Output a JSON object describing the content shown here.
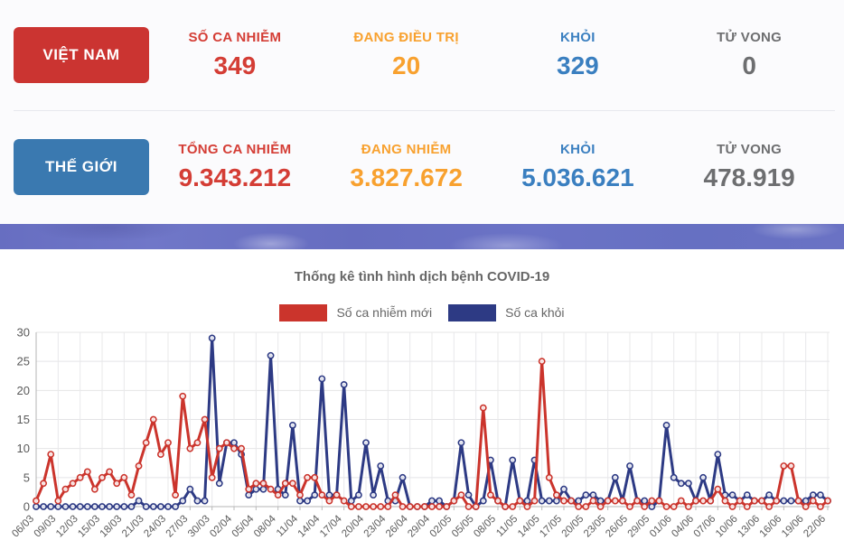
{
  "vietnam": {
    "button": "VIỆT NAM",
    "stats": [
      {
        "label": "SỐ CA NHIỄM",
        "value": "349",
        "color": "#d43d35"
      },
      {
        "label": "ĐANG ĐIỀU TRỊ",
        "value": "20",
        "color": "#f8a12f"
      },
      {
        "label": "KHỎI",
        "value": "329",
        "color": "#3a7fc0"
      },
      {
        "label": "TỬ VONG",
        "value": "0",
        "color": "#6d6e70"
      }
    ]
  },
  "world": {
    "button": "THẾ GIỚI",
    "stats": [
      {
        "label": "TỔNG CA NHIỄM",
        "value": "9.343.212",
        "color": "#d43d35"
      },
      {
        "label": "ĐANG NHIỄM",
        "value": "3.827.672",
        "color": "#f8a12f"
      },
      {
        "label": "KHỎI",
        "value": "5.036.621",
        "color": "#3a7fc0"
      },
      {
        "label": "TỬ VONG",
        "value": "478.919",
        "color": "#6d6e70"
      }
    ]
  },
  "chart": {
    "title": "Thống kê tình hình dịch bệnh COVID-19",
    "legend": [
      {
        "label": "Số ca nhiễm mới",
        "color": "#cb342c"
      },
      {
        "label": "Số ca khỏi",
        "color": "#2d3a84"
      }
    ]
  },
  "chart_data": {
    "type": "line",
    "title": "Thống kê tình hình dịch bệnh COVID-19",
    "xlabel": "",
    "ylabel": "",
    "ylim": [
      0,
      30
    ],
    "yticks": [
      0,
      5,
      10,
      15,
      20,
      25,
      30
    ],
    "xtick_every": 3,
    "grid": true,
    "legend_position": "top",
    "x": [
      "06/03",
      "07/03",
      "08/03",
      "09/03",
      "10/03",
      "11/03",
      "12/03",
      "13/03",
      "14/03",
      "15/03",
      "16/03",
      "17/03",
      "18/03",
      "19/03",
      "20/03",
      "21/03",
      "22/03",
      "23/03",
      "24/03",
      "25/03",
      "26/03",
      "27/03",
      "28/03",
      "29/03",
      "30/03",
      "31/03",
      "01/04",
      "02/04",
      "03/04",
      "04/04",
      "05/04",
      "06/04",
      "07/04",
      "08/04",
      "09/04",
      "10/04",
      "11/04",
      "12/04",
      "13/04",
      "14/04",
      "15/04",
      "16/04",
      "17/04",
      "18/04",
      "19/04",
      "20/04",
      "21/04",
      "22/04",
      "23/04",
      "24/04",
      "25/04",
      "26/04",
      "27/04",
      "28/04",
      "29/04",
      "30/04",
      "01/05",
      "02/05",
      "03/05",
      "04/05",
      "05/05",
      "06/05",
      "07/05",
      "08/05",
      "09/05",
      "10/05",
      "11/05",
      "12/05",
      "13/05",
      "14/05",
      "15/05",
      "16/05",
      "17/05",
      "18/05",
      "19/05",
      "20/05",
      "21/05",
      "22/05",
      "23/05",
      "24/05",
      "25/05",
      "26/05",
      "27/05",
      "28/05",
      "29/05",
      "30/05",
      "31/05",
      "01/06",
      "02/06",
      "03/06",
      "04/06",
      "05/06",
      "06/06",
      "07/06",
      "08/06",
      "09/06",
      "10/06",
      "11/06",
      "12/06",
      "13/06",
      "14/06",
      "15/06",
      "16/06",
      "17/06",
      "18/06",
      "19/06",
      "20/06",
      "21/06",
      "22/06"
    ],
    "series": [
      {
        "name": "Số ca nhiễm mới",
        "color": "#cb342c",
        "values": [
          1,
          4,
          9,
          1,
          3,
          4,
          5,
          6,
          3,
          5,
          6,
          4,
          5,
          2,
          7,
          11,
          15,
          9,
          11,
          2,
          19,
          10,
          11,
          15,
          5,
          10,
          11,
          10,
          10,
          3,
          4,
          4,
          3,
          2,
          4,
          4,
          2,
          5,
          5,
          2,
          1,
          2,
          1,
          0,
          0,
          0,
          0,
          0,
          0,
          2,
          0,
          0,
          0,
          0,
          0,
          0,
          0,
          1,
          2,
          0,
          0,
          17,
          2,
          1,
          0,
          0,
          1,
          0,
          1,
          25,
          5,
          2,
          1,
          1,
          0,
          0,
          1,
          0,
          1,
          1,
          1,
          0,
          1,
          0,
          1,
          1,
          0,
          0,
          1,
          0,
          1,
          1,
          1,
          3,
          1,
          0,
          1,
          0,
          1,
          1,
          0,
          1,
          7,
          7,
          1,
          0,
          1,
          0,
          1
        ]
      },
      {
        "name": "Số ca khỏi",
        "color": "#2d3a84",
        "values": [
          0,
          0,
          0,
          0,
          0,
          0,
          0,
          0,
          0,
          0,
          0,
          0,
          0,
          0,
          1,
          0,
          0,
          0,
          0,
          0,
          1,
          3,
          1,
          1,
          29,
          4,
          11,
          11,
          9,
          2,
          3,
          3,
          26,
          3,
          2,
          14,
          1,
          1,
          2,
          22,
          2,
          2,
          21,
          1,
          2,
          11,
          2,
          7,
          1,
          1,
          5,
          0,
          0,
          0,
          1,
          1,
          0,
          1,
          11,
          2,
          0,
          1,
          8,
          1,
          0,
          8,
          1,
          1,
          8,
          1,
          1,
          1,
          3,
          1,
          1,
          2,
          2,
          1,
          1,
          5,
          1,
          7,
          1,
          1,
          0,
          1,
          14,
          5,
          4,
          4,
          1,
          5,
          1,
          9,
          2,
          2,
          1,
          2,
          1,
          1,
          2,
          1,
          1,
          1,
          1,
          1,
          2,
          2,
          1
        ]
      }
    ]
  }
}
